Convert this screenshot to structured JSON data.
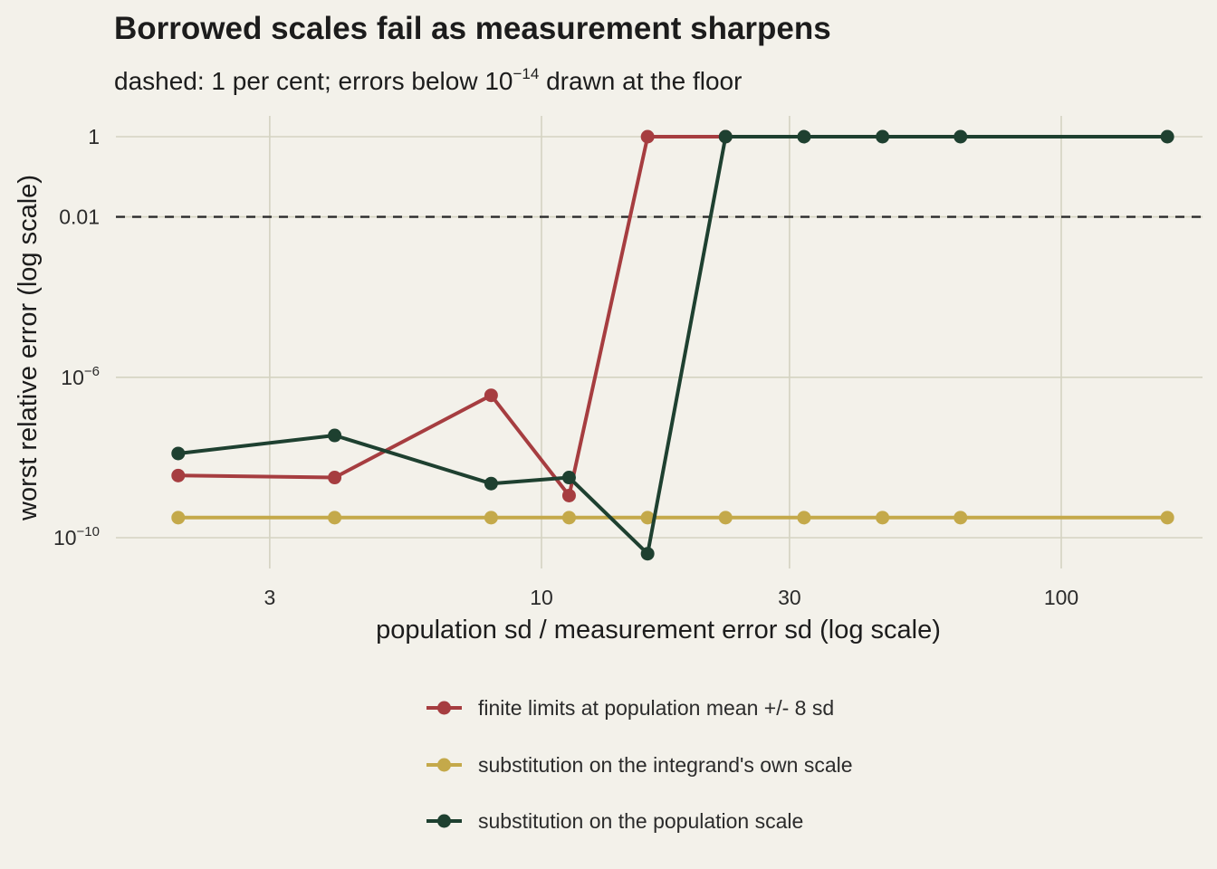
{
  "chart_data": {
    "type": "line",
    "title": "Borrowed scales fail as measurement sharpens",
    "subtitle_parts": [
      "dashed: 1 per cent; errors below 10",
      "−14",
      " drawn at the floor"
    ],
    "xlabel": "population sd / measurement error sd (log scale)",
    "ylabel": "worst relative error (log scale)",
    "x_scale": "log",
    "y_scale": "log",
    "xlim": [
      1.5,
      180
    ],
    "ylim_log10": [
      -10.5,
      1.4
    ],
    "x_ticks": [
      {
        "value": 3,
        "label": "3"
      },
      {
        "value": 10,
        "label": "10"
      },
      {
        "value": 30,
        "label": "30"
      },
      {
        "value": 100,
        "label": "100"
      }
    ],
    "y_ticks": [
      {
        "log10": 0,
        "base": "1",
        "exp": ""
      },
      {
        "log10": -2,
        "base": "0.01",
        "exp": ""
      },
      {
        "log10": -6,
        "base": "10",
        "exp": "−6"
      },
      {
        "log10": -10,
        "base": "10",
        "exp": "−10"
      }
    ],
    "reference_line": {
      "log10": -2,
      "style": "dashed",
      "color": "#2a2a2a"
    },
    "grid": true,
    "legend_position": "bottom",
    "series": [
      {
        "name": "finite limits at population mean +/- 8 sd",
        "color": "#a63d40",
        "points": [
          {
            "x": 2.0,
            "log10": -8.45
          },
          {
            "x": 4.0,
            "log10": -8.5
          },
          {
            "x": 8.0,
            "log10": -6.45
          },
          {
            "x": 11.3,
            "log10": -8.95
          },
          {
            "x": 16.0,
            "log10": 0
          },
          {
            "x": 22.6,
            "log10": 0
          }
        ]
      },
      {
        "name": "substitution on the integrand's own scale",
        "color": "#c4a94a",
        "points": [
          {
            "x": 2.0,
            "log10": -9.5
          },
          {
            "x": 4.0,
            "log10": -9.5
          },
          {
            "x": 8.0,
            "log10": -9.5
          },
          {
            "x": 11.3,
            "log10": -9.5
          },
          {
            "x": 16.0,
            "log10": -9.5
          },
          {
            "x": 22.6,
            "log10": -9.5
          },
          {
            "x": 32.0,
            "log10": -9.5
          },
          {
            "x": 45.3,
            "log10": -9.5
          },
          {
            "x": 64.0,
            "log10": -9.5
          },
          {
            "x": 160.0,
            "log10": -9.5
          }
        ]
      },
      {
        "name": "substitution on the population scale",
        "color": "#1e4030",
        "points": [
          {
            "x": 2.0,
            "log10": -7.9
          },
          {
            "x": 4.0,
            "log10": -7.45
          },
          {
            "x": 8.0,
            "log10": -8.65
          },
          {
            "x": 11.3,
            "log10": -8.5
          },
          {
            "x": 16.0,
            "log10": -10.4
          },
          {
            "x": 22.6,
            "log10": 0
          },
          {
            "x": 32.0,
            "log10": 0
          },
          {
            "x": 45.3,
            "log10": 0
          },
          {
            "x": 64.0,
            "log10": 0
          },
          {
            "x": 160.0,
            "log10": 0
          }
        ]
      }
    ]
  }
}
